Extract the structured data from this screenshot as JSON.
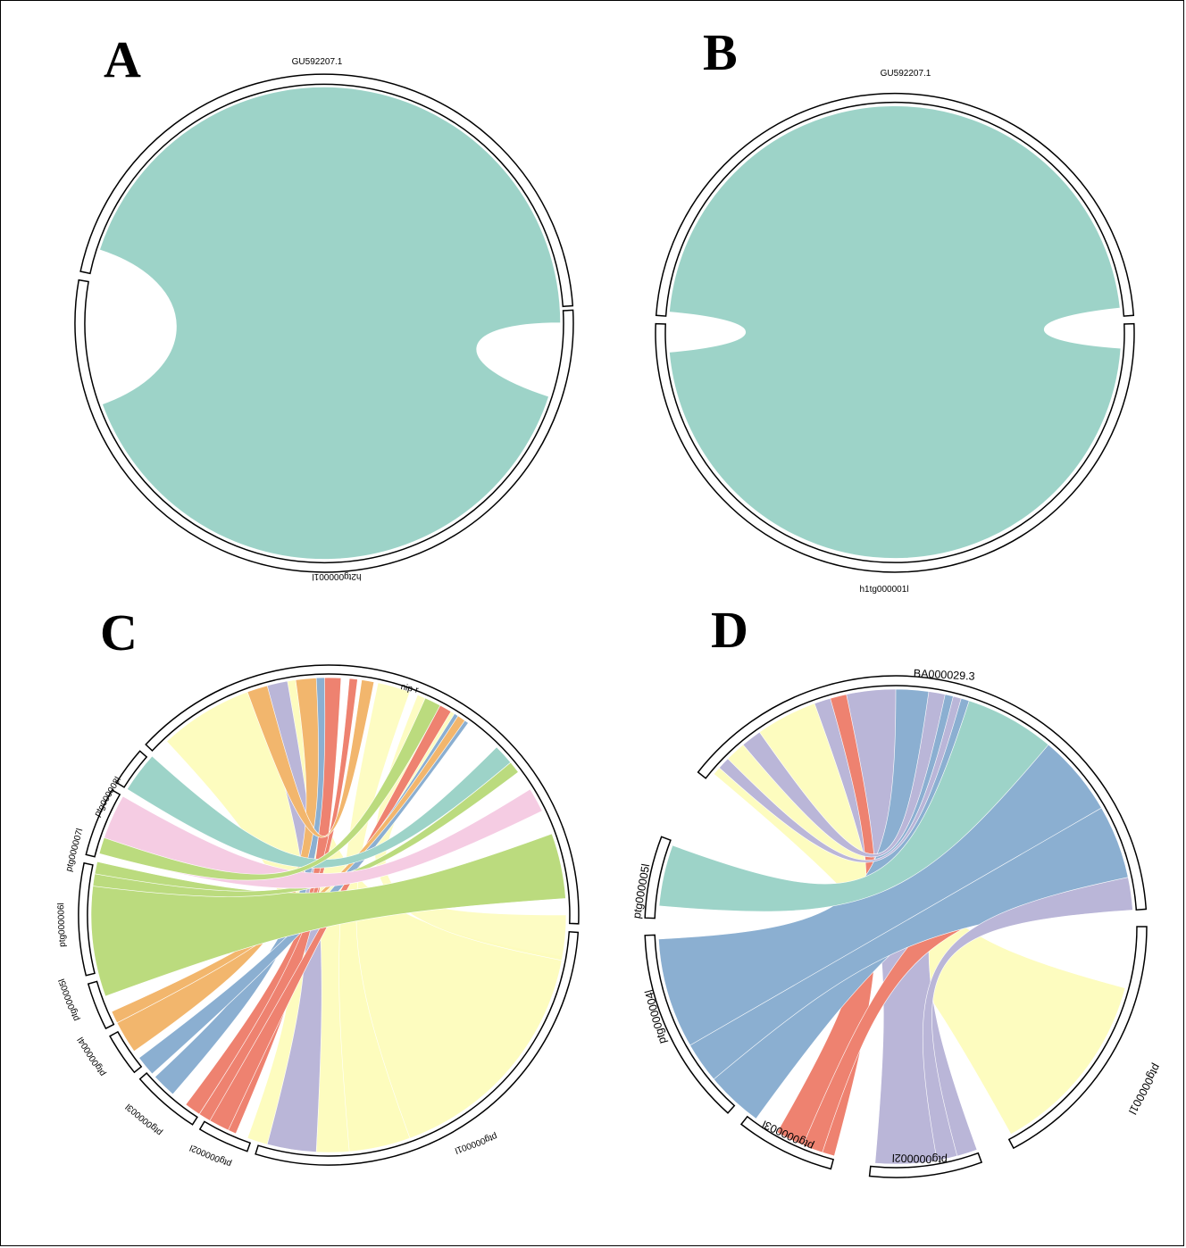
{
  "palette": {
    "teal": "#9dd3c8",
    "yellow": "#fdfcbc",
    "lilac": "#bab6d8",
    "salmon": "#ee8270",
    "blue": "#8bafd1",
    "orange": "#f2b66d",
    "green": "#bbdb7e",
    "pink": "#f5cce3"
  },
  "panels": [
    {
      "id": "A",
      "label": "A",
      "segments": [
        {
          "name": "GU592207.1",
          "label": "GU592207.1"
        },
        {
          "name": "h2tg000001l",
          "label": "h2tg000001l"
        }
      ]
    },
    {
      "id": "B",
      "label": "B",
      "segments": [
        {
          "name": "GU592207.1",
          "label": "GU592207.1"
        },
        {
          "name": "h1tg000001l",
          "label": "h1tg000001l"
        }
      ]
    },
    {
      "id": "C",
      "label": "C",
      "segments": [
        {
          "name": "nip-r",
          "label": "nip-r"
        },
        {
          "name": "ptg000001l",
          "label": "ptg000001l"
        },
        {
          "name": "ptg000002l",
          "label": "ptg000002l"
        },
        {
          "name": "ptg000003l",
          "label": "ptg000003l"
        },
        {
          "name": "ptg000004l",
          "label": "ptg000004l"
        },
        {
          "name": "ptg000005l",
          "label": "ptg000005l"
        },
        {
          "name": "ptg000006l",
          "label": "ptg000006l"
        },
        {
          "name": "ptg000007l",
          "label": "ptg000007l"
        },
        {
          "name": "ptg000008l",
          "label": "ptg000008l"
        }
      ]
    },
    {
      "id": "D",
      "label": "D",
      "segments": [
        {
          "name": "BA000029.3",
          "label": "BA000029.3"
        },
        {
          "name": "ptg000001l",
          "label": "ptg000001l"
        },
        {
          "name": "ptg000002l",
          "label": "ptg000002l"
        },
        {
          "name": "ptg000003l",
          "label": "ptg000003l"
        },
        {
          "name": "ptg000004l",
          "label": "ptg000004l"
        },
        {
          "name": "ptg000005l",
          "label": "ptg000005l"
        }
      ]
    }
  ]
}
